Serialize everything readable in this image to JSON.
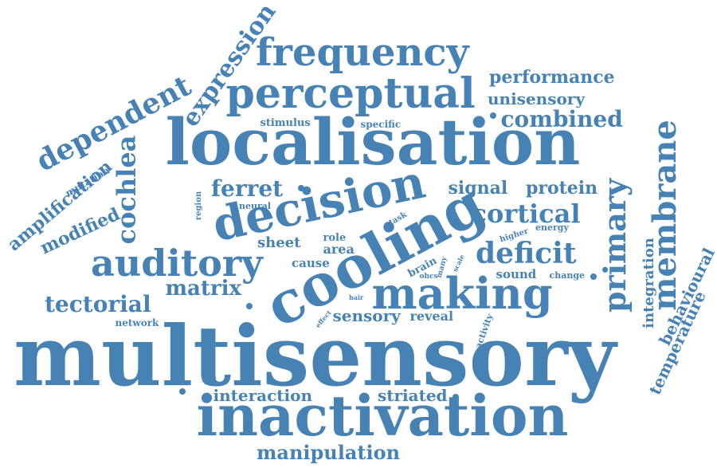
{
  "color": "#4682b4",
  "background": "#ffffff",
  "words": [
    {
      "text": "multisensory",
      "weight": 1.0
    },
    {
      "text": "localisation",
      "weight": 0.72
    },
    {
      "text": "inactivation",
      "weight": 0.62
    },
    {
      "text": "cooling",
      "weight": 0.6
    },
    {
      "text": "decision",
      "weight": 0.52
    },
    {
      "text": "auditory",
      "weight": 0.45
    },
    {
      "text": "making",
      "weight": 0.5
    },
    {
      "text": "perceptual",
      "weight": 0.48
    },
    {
      "text": "frequency",
      "weight": 0.42
    },
    {
      "text": "membrane",
      "weight": 0.36
    },
    {
      "text": "primary",
      "weight": 0.35
    },
    {
      "text": "dependent",
      "weight": 0.34
    },
    {
      "text": "cochlea",
      "weight": 0.3
    },
    {
      "text": "expression",
      "weight": 0.3
    },
    {
      "text": "deficit",
      "weight": 0.3
    },
    {
      "text": "cortical",
      "weight": 0.27
    },
    {
      "text": "tectorial",
      "weight": 0.26
    },
    {
      "text": "ferret",
      "weight": 0.25
    },
    {
      "text": "combined",
      "weight": 0.25
    },
    {
      "text": "matrix",
      "weight": 0.24
    },
    {
      "text": "amplification",
      "weight": 0.23
    },
    {
      "text": "modified",
      "weight": 0.22
    },
    {
      "text": "manipulation",
      "weight": 0.22
    },
    {
      "text": "performance",
      "weight": 0.22
    },
    {
      "text": "unisensory",
      "weight": 0.2
    },
    {
      "text": "signal",
      "weight": 0.2
    },
    {
      "text": "protein",
      "weight": 0.2
    },
    {
      "text": "sensory",
      "weight": 0.2
    },
    {
      "text": "interaction",
      "weight": 0.2
    },
    {
      "text": "striated",
      "weight": 0.2
    },
    {
      "text": "behavioural",
      "weight": 0.2
    },
    {
      "text": "temperature",
      "weight": 0.19
    },
    {
      "text": "integration",
      "weight": 0.18
    },
    {
      "text": "sheet",
      "weight": 0.17
    },
    {
      "text": "area",
      "weight": 0.16
    },
    {
      "text": "cause",
      "weight": 0.15
    },
    {
      "text": "reveal",
      "weight": 0.15
    },
    {
      "text": "sound",
      "weight": 0.15
    },
    {
      "text": "stimulus",
      "weight": 0.14
    },
    {
      "text": "network",
      "weight": 0.14
    },
    {
      "text": "specific",
      "weight": 0.13
    },
    {
      "text": "role",
      "weight": 0.13
    },
    {
      "text": "mutation",
      "weight": 0.13
    },
    {
      "text": "neural",
      "weight": 0.12
    },
    {
      "text": "region",
      "weight": 0.12
    },
    {
      "text": "brain",
      "weight": 0.12
    },
    {
      "text": "change",
      "weight": 0.12
    },
    {
      "text": "energy",
      "weight": 0.12
    },
    {
      "text": "higher",
      "weight": 0.11
    },
    {
      "text": "activity",
      "weight": 0.11
    },
    {
      "text": "task",
      "weight": 0.1
    },
    {
      "text": "many",
      "weight": 0.1
    },
    {
      "text": "ohcs",
      "weight": 0.1
    },
    {
      "text": "scale",
      "weight": 0.09
    },
    {
      "text": "effect",
      "weight": 0.09
    },
    {
      "text": "hair",
      "weight": 0.09
    }
  ]
}
